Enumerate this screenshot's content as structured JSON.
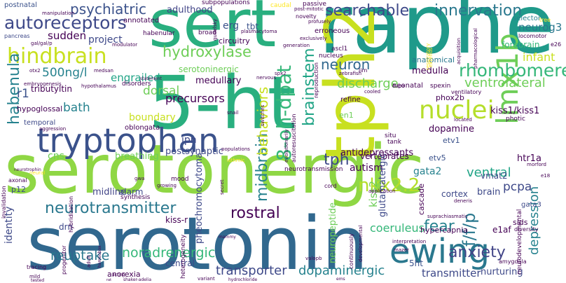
{
  "words": [
    {
      "text": "serotonergic",
      "color": "#8fd744"
    },
    {
      "text": "serotonin",
      "color": "#31688e"
    },
    {
      "text": "5-ht",
      "color": "#29af7f"
    },
    {
      "text": "raphe",
      "color": "#1f9a8a"
    },
    {
      "text": "sert",
      "color": "#29af7f"
    },
    {
      "text": "tph2",
      "color": "#c8e020"
    },
    {
      "text": "tryptophan",
      "color": "#3b528b"
    },
    {
      "text": "hindbrain",
      "color": "#c8e020"
    },
    {
      "text": "ewing",
      "color": "#2a788e"
    },
    {
      "text": "lmx1b",
      "color": "#6ece58"
    },
    {
      "text": "autoreceptors",
      "color": "#3e4989"
    },
    {
      "text": "hydroxylase",
      "color": "#6ece58"
    },
    {
      "text": "neurotransmitter",
      "color": "#2a788e"
    },
    {
      "text": "rostral",
      "color": "#440154"
    },
    {
      "text": "nkx2.2",
      "color": "#b5de2b"
    },
    {
      "text": "8-oh-dpat",
      "color": "#35b779"
    },
    {
      "text": "midbrain",
      "color": "#26828e"
    },
    {
      "text": "brainstem",
      "color": "#20a486"
    },
    {
      "text": "rhombomere",
      "color": "#35b779"
    },
    {
      "text": "nuclei",
      "color": "#b5de2b"
    },
    {
      "text": "searchable",
      "color": "#3e4989"
    },
    {
      "text": "innervation",
      "color": "#2a788e"
    },
    {
      "text": "neuron",
      "color": "#31688e"
    },
    {
      "text": "habenula",
      "color": "#26828e"
    },
    {
      "text": "behaviors",
      "color": "#c8e020"
    },
    {
      "text": "anxiety",
      "color": "#414487"
    },
    {
      "text": "fear",
      "color": "#26828e"
    },
    {
      "text": "f/f/p",
      "color": "#2a788e"
    },
    {
      "text": "tph",
      "color": "#3e4989"
    },
    {
      "text": "psychiatric",
      "color": "#3b528b"
    },
    {
      "text": "adulthood",
      "color": "#414487"
    },
    {
      "text": "500ng/l",
      "color": "#26828e"
    },
    {
      "text": "discharge",
      "color": "#6ece58"
    },
    {
      "text": "ventrolateral",
      "color": "#6ece58"
    },
    {
      "text": "engrailed",
      "color": "#20a486"
    },
    {
      "text": "dorsal",
      "color": "#6ece58"
    },
    {
      "text": "reuptake",
      "color": "#2a788e"
    },
    {
      "text": "noradrenergic",
      "color": "#35b779"
    },
    {
      "text": "transporter",
      "color": "#3e4989"
    },
    {
      "text": "dopaminergic",
      "color": "#26828e"
    },
    {
      "text": "depression",
      "color": "#26828e"
    },
    {
      "text": "transmitter",
      "color": "#3e4989"
    },
    {
      "text": "coeruleus",
      "color": "#35b779"
    },
    {
      "text": "ventral",
      "color": "#20a486"
    },
    {
      "text": "pcpa",
      "color": "#3e4989"
    },
    {
      "text": "gata2",
      "color": "#26828e"
    },
    {
      "text": "htr1a",
      "color": "#440154"
    },
    {
      "text": "neurog3",
      "color": "#2a788e"
    },
    {
      "text": "infant",
      "color": "#c8e020"
    },
    {
      "text": "sudden",
      "color": "#440154"
    },
    {
      "text": "project",
      "color": "#3e4989"
    },
    {
      "text": "bath",
      "color": "#26828e"
    },
    {
      "text": "r1",
      "color": "#3b528b"
    },
    {
      "text": "tributyltin",
      "color": "#440154"
    },
    {
      "text": "precursors",
      "color": "#440154"
    },
    {
      "text": "boundary",
      "color": "#c8e020"
    },
    {
      "text": "ipn",
      "color": "#3e4989"
    },
    {
      "text": "postsynaptic",
      "color": "#3e4989"
    },
    {
      "text": "breathing",
      "color": "#6ece58"
    },
    {
      "text": "cns",
      "color": "#6ece58"
    },
    {
      "text": "midline",
      "color": "#414487"
    },
    {
      "text": "alarm",
      "color": "#3e4989"
    },
    {
      "text": "autism",
      "color": "#440154"
    },
    {
      "text": "antidepressants",
      "color": "#440154"
    },
    {
      "text": "dopamine",
      "color": "#440154"
    },
    {
      "text": "kiss1/kiss1",
      "color": "#440154"
    },
    {
      "text": "medulla",
      "color": "#440154"
    },
    {
      "text": "serotoninergic",
      "color": "#6ece58"
    },
    {
      "text": "medullary",
      "color": "#440154"
    },
    {
      "text": "anatomical",
      "color": "#2a788e"
    },
    {
      "text": "forebrain",
      "color": "#35b779"
    },
    {
      "text": "tbt",
      "color": "#3b528b"
    },
    {
      "text": "erg",
      "color": "#3b528b"
    },
    {
      "text": "circuitry",
      "color": "#440154"
    },
    {
      "text": "selector",
      "color": "#26828e"
    },
    {
      "text": "5ht",
      "color": "#3b528b"
    },
    {
      "text": "nurturing",
      "color": "#3e4989"
    },
    {
      "text": "brain",
      "color": "#3e4989"
    },
    {
      "text": "e1af",
      "color": "#440154"
    },
    {
      "text": "vmat2",
      "color": "#3e4989"
    },
    {
      "text": "gata3",
      "color": "#3e4989"
    },
    {
      "text": "cortex",
      "color": "#3e4989"
    },
    {
      "text": "etv5",
      "color": "#3b528b"
    },
    {
      "text": "etv1",
      "color": "#3b528b"
    },
    {
      "text": "kiss-r",
      "color": "#440154"
    },
    {
      "text": "vertebrates",
      "color": "#440154"
    },
    {
      "text": "neuropeptide",
      "color": "#6ece58"
    },
    {
      "text": "glutamatergic",
      "color": "#3e4989"
    },
    {
      "text": "pheochromocytoma",
      "color": "#3e4989"
    },
    {
      "text": "identity",
      "color": "#3e4989"
    },
    {
      "text": "anorexia",
      "color": "#440154"
    },
    {
      "text": "central",
      "color": "#3e4989"
    },
    {
      "text": "drn",
      "color": "#3e4989"
    },
    {
      "text": "hypercapnia",
      "color": "#440154"
    },
    {
      "text": "cascade",
      "color": "#440154"
    },
    {
      "text": "kiss2",
      "color": "#6ece58"
    },
    {
      "text": "phox2b",
      "color": "#440154"
    },
    {
      "text": "sids",
      "color": "#440154"
    },
    {
      "text": "en1",
      "color": "#6ece58"
    },
    {
      "text": "refine",
      "color": "#440154"
    },
    {
      "text": "neonatal",
      "color": "#440154"
    },
    {
      "text": "temporal",
      "color": "#3e4989"
    },
    {
      "text": "hypoglossal",
      "color": "#440154"
    },
    {
      "text": "postnatal",
      "color": "#3b528b"
    },
    {
      "text": "erroneous",
      "color": "#440154"
    },
    {
      "text": "nucleus",
      "color": "#440154"
    },
    {
      "text": "ascl1",
      "color": "#440154"
    },
    {
      "text": "broad",
      "color": "#440154"
    },
    {
      "text": "habenular",
      "color": "#440154"
    },
    {
      "text": "annotated",
      "color": "#440154"
    },
    {
      "text": "disorders",
      "color": "#440154"
    },
    {
      "text": "passive",
      "color": "#440154"
    },
    {
      "text": "caudal",
      "color": "#fde725"
    },
    {
      "text": "novelty",
      "color": "#440154"
    },
    {
      "text": "post-mitotic",
      "color": "#440154"
    },
    {
      "text": "subpopulations",
      "color": "#440154"
    },
    {
      "text": "manipulation",
      "color": "#440154"
    },
    {
      "text": "pancreas",
      "color": "#3e4989"
    },
    {
      "text": "modulator",
      "color": "#440154"
    },
    {
      "text": "gal/gal/p",
      "color": "#440154"
    },
    {
      "text": "generation",
      "color": "#440154"
    },
    {
      "text": "exclusively",
      "color": "#440154"
    },
    {
      "text": "plasmacytoma",
      "color": "#440154"
    },
    {
      "text": "gudelsky",
      "color": "#440154"
    },
    {
      "text": "zebrafish",
      "color": "#440154"
    },
    {
      "text": "reproduction",
      "color": "#440154"
    },
    {
      "text": "lim",
      "color": "#440154"
    },
    {
      "text": "spx2",
      "color": "#440154"
    },
    {
      "text": "medsan",
      "color": "#440154"
    },
    {
      "text": "hypothalamus",
      "color": "#440154"
    },
    {
      "text": "embryogenesis",
      "color": "#440154"
    },
    {
      "text": "otx2",
      "color": "#440154"
    },
    {
      "text": "oblongata",
      "color": "#440154"
    },
    {
      "text": "synthesis",
      "color": "#440154"
    },
    {
      "text": "mood",
      "color": "#440154"
    },
    {
      "text": "growing",
      "color": "#440154"
    },
    {
      "text": "gwa",
      "color": "#440154"
    },
    {
      "text": "aggression",
      "color": "#440154"
    },
    {
      "text": "axonal",
      "color": "#440154"
    },
    {
      "text": "neural",
      "color": "#fde725"
    },
    {
      "text": "p12",
      "color": "#3e4989"
    },
    {
      "text": "invalidation",
      "color": "#440154"
    },
    {
      "text": "hybridization",
      "color": "#440154"
    },
    {
      "text": "progenitor",
      "color": "#440154"
    },
    {
      "text": "tracing",
      "color": "#440154"
    },
    {
      "text": "mild",
      "color": "#440154"
    },
    {
      "text": "tested",
      "color": "#440154"
    },
    {
      "text": "heterogeneity",
      "color": "#440154"
    },
    {
      "text": "variant",
      "color": "#440154"
    },
    {
      "text": "adult",
      "color": "#440154"
    },
    {
      "text": "homeobox",
      "color": "#440154"
    },
    {
      "text": "populations",
      "color": "#440154"
    },
    {
      "text": "isthmic",
      "color": "#fde725"
    },
    {
      "text": "situ",
      "color": "#440154"
    },
    {
      "text": "tank",
      "color": "#440154"
    },
    {
      "text": "located",
      "color": "#440154"
    },
    {
      "text": "photic",
      "color": "#440154"
    },
    {
      "text": "spexin",
      "color": "#440154"
    },
    {
      "text": "dupa",
      "color": "#440154"
    },
    {
      "text": "ventilatory",
      "color": "#440154"
    },
    {
      "text": "cooled",
      "color": "#440154"
    },
    {
      "text": "acquisition",
      "color": "#440154"
    },
    {
      "text": "pharmacological",
      "color": "#440154"
    },
    {
      "text": "locomotor",
      "color": "#440154"
    },
    {
      "text": "e26",
      "color": "#440154"
    },
    {
      "text": "tree",
      "color": "#fde725"
    },
    {
      "text": "extends",
      "color": "#fde725"
    },
    {
      "text": "respiratory",
      "color": "#fde725"
    },
    {
      "text": "profusely",
      "color": "#440154"
    },
    {
      "text": "application",
      "color": "#440154"
    },
    {
      "text": "cord",
      "color": "#440154"
    },
    {
      "text": "neurotransmission",
      "color": "#440154"
    },
    {
      "text": "autoresuscitation",
      "color": "#440154"
    },
    {
      "text": "evolutionarily",
      "color": "#440154"
    },
    {
      "text": "continuously",
      "color": "#440154"
    },
    {
      "text": "developmental",
      "color": "#440154"
    },
    {
      "text": "interpretation",
      "color": "#440154"
    },
    {
      "text": "mazer",
      "color": "#440154"
    },
    {
      "text": "suprachiasmatic",
      "color": "#440154"
    },
    {
      "text": "deneris",
      "color": "#440154"
    },
    {
      "text": "neurodevelopmental",
      "color": "#440154"
    },
    {
      "text": "morford",
      "color": "#440154"
    },
    {
      "text": "e18",
      "color": "#440154"
    },
    {
      "text": "diversity",
      "color": "#440154"
    },
    {
      "text": "amygdala",
      "color": "#440154"
    },
    {
      "text": "valopb",
      "color": "#440154"
    },
    {
      "text": "ems",
      "color": "#440154"
    },
    {
      "text": "hydrochloride",
      "color": "#440154"
    },
    {
      "text": "shaker-adelia",
      "color": "#440154"
    },
    {
      "text": "acting",
      "color": "#440154"
    },
    {
      "text": "rat",
      "color": "#440154"
    },
    {
      "text": "switches",
      "color": "#440154"
    },
    {
      "text": "snail",
      "color": "#440154"
    },
    {
      "text": "secret",
      "color": "#440154"
    },
    {
      "text": "mammy",
      "color": "#440154"
    },
    {
      "text": "nervous",
      "color": "#440154"
    },
    {
      "text": "statement",
      "color": "#440154"
    },
    {
      "text": "neurotrophin",
      "color": "#440154"
    }
  ]
}
